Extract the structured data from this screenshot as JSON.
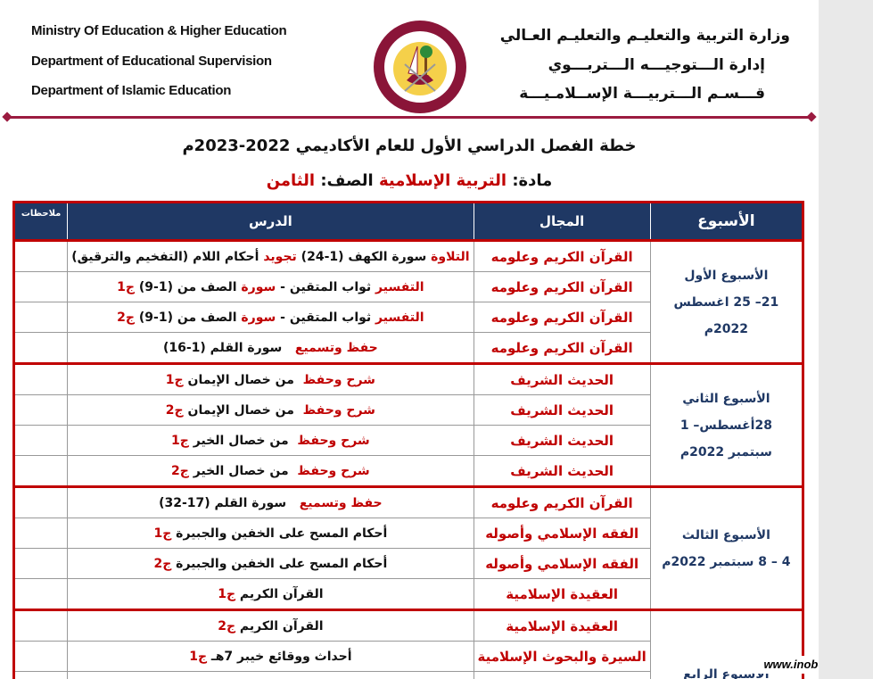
{
  "header": {
    "en_lines": [
      "Ministry Of Education & Higher  Education",
      "Department of Educational Supervision",
      "Department of Islamic Education"
    ],
    "ar_lines": [
      "وزارة التربية والتعليـم والتعليـم العـالي",
      "إدارة الـــتوجيـــه الـــتربـــوي",
      "قـــسـم الـــتربيـــة الإســلامـيـــة"
    ],
    "logo_text": "دولة قطر - وزارة التربية والتعليم والتعليم العالي"
  },
  "title": "خطة الفصل الدراسي الأول للعام الأكاديمي 2022-2023م",
  "subtitle": {
    "subject_label": "مادة: ",
    "subject": "التربية الإسلامية",
    "grade_label": " الصف: ",
    "grade": "الثامن"
  },
  "colors": {
    "accent_red": "#c00000",
    "header_navy": "#1f3864",
    "rule": "#9b1b40"
  },
  "table": {
    "headers": {
      "week": "الأسبوع",
      "field": "المجال",
      "lesson": "الدرس",
      "notes": "ملاحظات"
    },
    "weeks": [
      {
        "label": "الأسبوع الأول",
        "dates": "21– 25 اغسطس 2022م",
        "rows": [
          {
            "field": "القرآن الكريم وعلومه",
            "lesson": [
              {
                "t": "التلاوة",
                "r": true
              },
              {
                "t": " سورة الكهف (1-24) "
              },
              {
                "t": "تجويد",
                "r": true
              },
              {
                "t": " أحكام اللام (التفخيم والترقيق)"
              }
            ]
          },
          {
            "field": "القرآن الكريم وعلومه",
            "lesson": [
              {
                "t": "التفسير",
                "r": true
              },
              {
                "t": " ثواب المتقين - "
              },
              {
                "t": "سورة",
                "r": true
              },
              {
                "t": " الصف من (1-9) "
              },
              {
                "t": "ج1",
                "r": true
              }
            ]
          },
          {
            "field": "القرآن الكريم وعلومه",
            "lesson": [
              {
                "t": "التفسير",
                "r": true
              },
              {
                "t": " ثواب المتقين - "
              },
              {
                "t": "سورة",
                "r": true
              },
              {
                "t": " الصف من (1-9) "
              },
              {
                "t": "ج2",
                "r": true
              }
            ]
          },
          {
            "field": "القرآن الكريم وعلومه",
            "lesson": [
              {
                "t": "حفظ وتسميع",
                "r": true
              },
              {
                "t": "   سورة القلم (1-16)"
              }
            ]
          }
        ]
      },
      {
        "label": "الأسبوع الثاني",
        "dates": "28أغسطس– 1 سبتمبر 2022م",
        "rows": [
          {
            "field": "الحديث الشريف",
            "lesson": [
              {
                "t": "شرح وحفظ",
                "r": true
              },
              {
                "t": "  من خصال الإيمان "
              },
              {
                "t": "ج1",
                "r": true
              }
            ]
          },
          {
            "field": "الحديث الشريف",
            "lesson": [
              {
                "t": "شرح وحفظ",
                "r": true
              },
              {
                "t": "  من خصال الإيمان "
              },
              {
                "t": "ج2",
                "r": true
              }
            ]
          },
          {
            "field": "الحديث الشريف",
            "lesson": [
              {
                "t": "شرح وحفظ",
                "r": true
              },
              {
                "t": "  من خصال الخير "
              },
              {
                "t": "ج1",
                "r": true
              }
            ]
          },
          {
            "field": "الحديث الشريف",
            "lesson": [
              {
                "t": "شرح وحفظ",
                "r": true
              },
              {
                "t": "  من خصال الخير "
              },
              {
                "t": "ج2",
                "r": true
              }
            ]
          }
        ]
      },
      {
        "label": "الأسبوع الثالث",
        "dates": "4 – 8 سبتمبر 2022م",
        "rows": [
          {
            "field": "القرآن الكريم وعلومه",
            "lesson": [
              {
                "t": "حفظ وتسميع",
                "r": true
              },
              {
                "t": "   سورة القلم (17-32)"
              }
            ]
          },
          {
            "field": "الفقه الإسلامي وأصوله",
            "lesson": [
              {
                "t": "أحكام المسح على الخفين والجبيرة "
              },
              {
                "t": "ج1",
                "r": true
              }
            ]
          },
          {
            "field": "الفقه الإسلامي وأصوله",
            "lesson": [
              {
                "t": "أحكام المسح على الخفين والجبيرة "
              },
              {
                "t": "ج2",
                "r": true
              }
            ]
          },
          {
            "field": "العقيدة الإسلامية",
            "lesson": [
              {
                "t": "القرآن الكريم "
              },
              {
                "t": "ج1",
                "r": true
              }
            ]
          }
        ]
      },
      {
        "label": "الأسبوع الرابع",
        "dates": "",
        "rows": [
          {
            "field": "العقيدة الإسلامية",
            "lesson": [
              {
                "t": "القرآن الكريم "
              },
              {
                "t": "ج2",
                "r": true
              }
            ]
          },
          {
            "field": "السيرة والبحوث الإسلامية",
            "lesson": [
              {
                "t": "أحداث ووقائع خيبر 7هـ "
              },
              {
                "t": "ج1",
                "r": true
              }
            ]
          },
          {
            "field": "",
            "lesson": []
          }
        ]
      }
    ]
  },
  "watermark": "www.inob-io.com"
}
